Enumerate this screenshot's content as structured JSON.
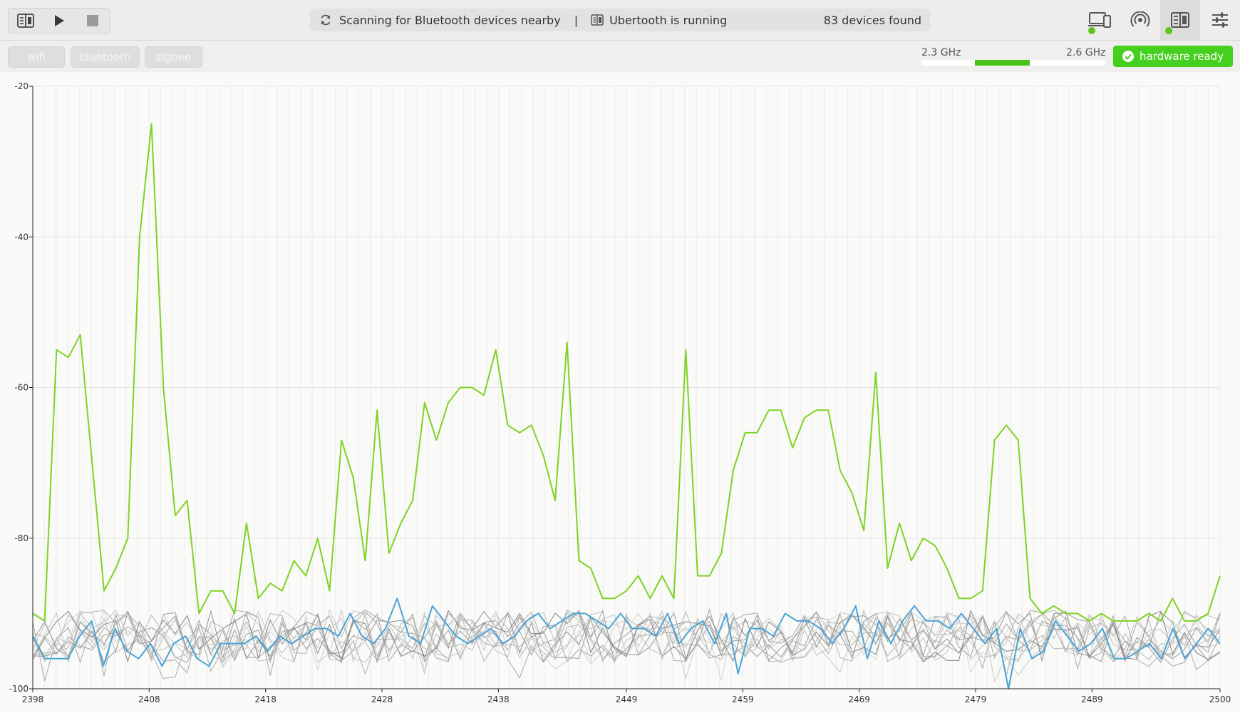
{
  "toolbar": {
    "status_text": "Scanning for Bluetooth devices nearby",
    "separator": "|",
    "ubertooth_text": "Ubertooth is running",
    "devices_found": "83 devices found",
    "icons": [
      "spectrum-icon",
      "play-icon",
      "stop-icon",
      "refresh-icon",
      "radio-device-icon",
      "devices-icon",
      "broadcast-icon",
      "spectrum-icon",
      "sliders-icon"
    ]
  },
  "filters": {
    "wifi": "wifi",
    "bluetooth": "bluetooth",
    "zigbee": "zigbee"
  },
  "range": {
    "min_label": "2.3 GHz",
    "max_label": "2.6 GHz",
    "selected_fraction": [
      0.29,
      0.59
    ]
  },
  "hardware": {
    "label": "hardware ready",
    "color": "#45cf1f"
  },
  "colors": {
    "accent": "#7ed321",
    "highlight_series": "#4aa3d8",
    "background_series": "#8f8f8f"
  },
  "chart_data": {
    "type": "line",
    "ylim": [
      -100,
      -20
    ],
    "xlim": [
      2398,
      2500
    ],
    "y_ticks": [
      "-20",
      "-40",
      "-60",
      "-80",
      "-100"
    ],
    "x_ticks": [
      "2398",
      "2408",
      "2418",
      "2428",
      "2438",
      "2449",
      "2459",
      "2469",
      "2479",
      "2489",
      "2500"
    ],
    "grid": true,
    "series": [
      {
        "color": "#7ed321",
        "values": [
          -90,
          -91,
          -55,
          -56,
          -53,
          -70,
          -87,
          -84,
          -80,
          -40,
          -25,
          -60,
          -77,
          -75,
          -90,
          -87,
          -87,
          -90,
          -78,
          -88,
          -86,
          -87,
          -83,
          -85,
          -80,
          -87,
          -67,
          -72,
          -83,
          -63,
          -82,
          -78,
          -75,
          -62,
          -67,
          -62,
          -60,
          -60,
          -61,
          -55,
          -65,
          -66,
          -65,
          -69,
          -75,
          -54,
          -83,
          -84,
          -88,
          -88,
          -87,
          -85,
          -88,
          -85,
          -88,
          -55,
          -85,
          -85,
          -82,
          -71,
          -66,
          -66,
          -63,
          -63,
          -68,
          -64,
          -63,
          -63,
          -71,
          -74,
          -79,
          -58,
          -84,
          -78,
          -83,
          -80,
          -81,
          -84,
          -88,
          -88,
          -87,
          -67,
          -65,
          -67,
          -88,
          -90,
          -89,
          -90,
          -90,
          -91,
          -90,
          -91,
          -91,
          -91,
          -90,
          -91,
          -88,
          -91,
          -91,
          -90,
          -85
        ]
      },
      {
        "color": "#4aa3d8",
        "values": [
          -93,
          -96,
          -96,
          -96,
          -93,
          -91,
          -97,
          -92,
          -95,
          -96,
          -94,
          -97,
          -94,
          -93,
          -96,
          -97,
          -94,
          -94,
          -94,
          -93,
          -95,
          -93,
          -94,
          -93,
          -92,
          -92,
          -93,
          -90,
          -93,
          -94,
          -92,
          -88,
          -93,
          -94,
          -89,
          -91,
          -93,
          -94,
          -93,
          -92,
          -94,
          -93,
          -91,
          -90,
          -92,
          -91,
          -90,
          -90,
          -91,
          -92,
          -90,
          -92,
          -92,
          -93,
          -90,
          -94,
          -92,
          -91,
          -94,
          -90,
          -98,
          -92,
          -92,
          -93,
          -90,
          -91,
          -91,
          -92,
          -94,
          -92,
          -89,
          -96,
          -91,
          -94,
          -91,
          -89,
          -91,
          -91,
          -92,
          -90,
          -92,
          -94,
          -92,
          -100,
          -92,
          -96,
          -95,
          -91,
          -93,
          -95,
          -94,
          -92,
          -96,
          -96,
          -95,
          -94,
          -96,
          -92,
          -96,
          -94,
          -92,
          -94
        ]
      }
    ]
  }
}
